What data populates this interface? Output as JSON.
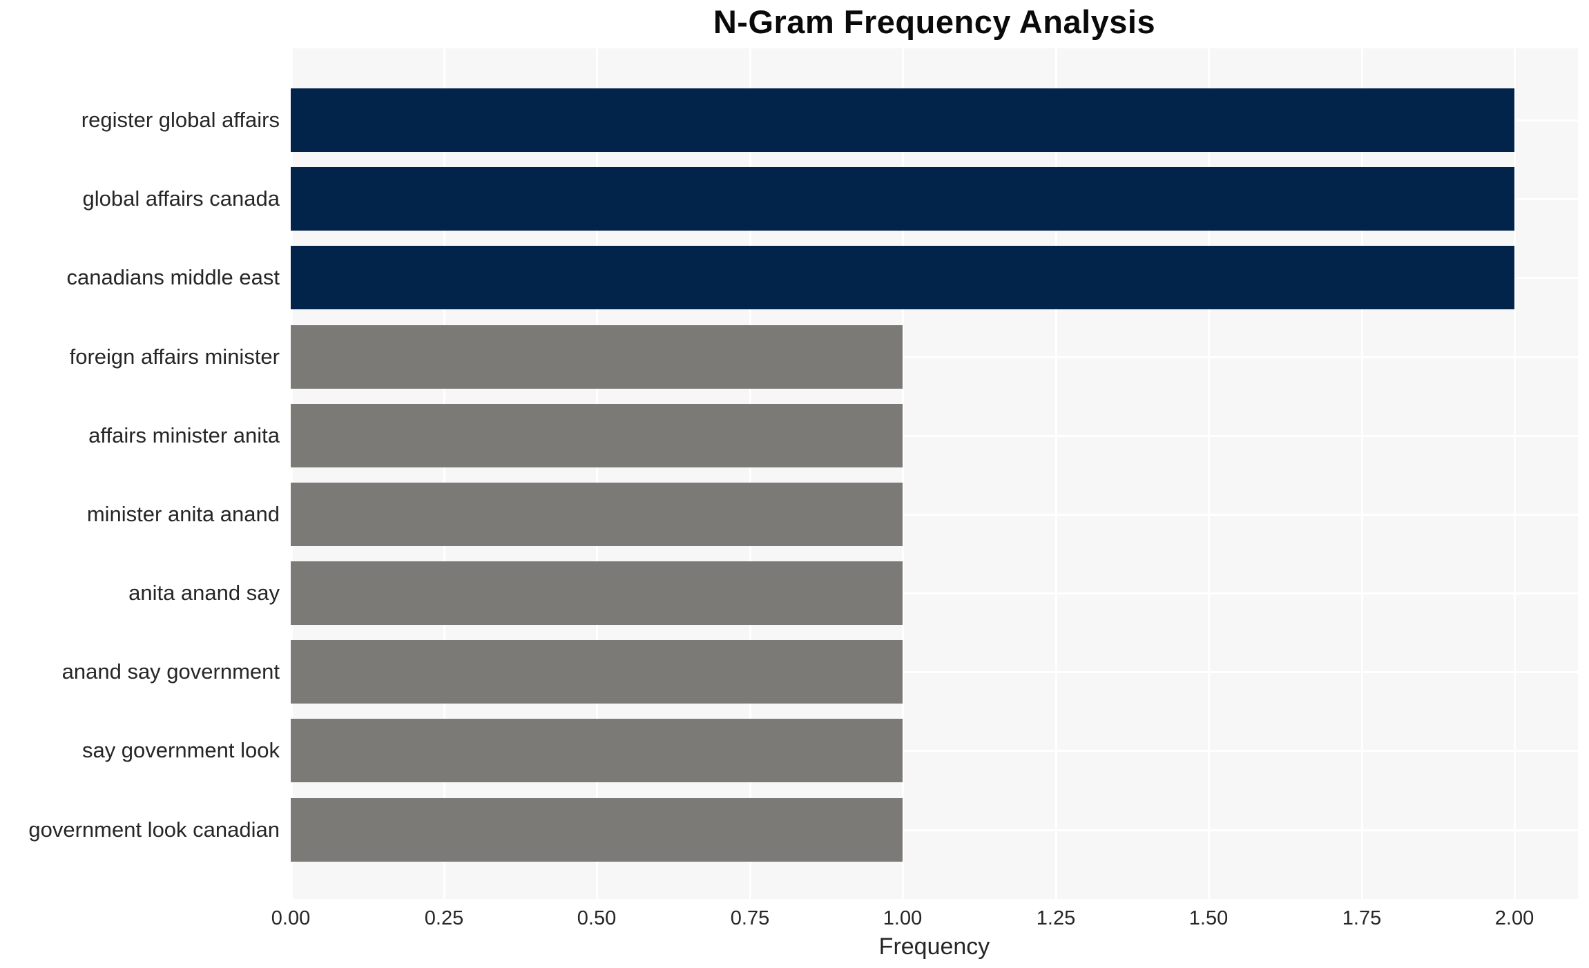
{
  "chart_data": {
    "type": "bar",
    "orientation": "horizontal",
    "title": "N-Gram Frequency Analysis",
    "xlabel": "Frequency",
    "ylabel": "",
    "categories": [
      "register global affairs",
      "global affairs canada",
      "canadians middle east",
      "foreign affairs minister",
      "affairs minister anita",
      "minister anita anand",
      "anita anand say",
      "anand say government",
      "say government look",
      "government look canadian"
    ],
    "values": [
      2,
      2,
      2,
      1,
      1,
      1,
      1,
      1,
      1,
      1
    ],
    "bar_colors": [
      "#02244A",
      "#02244A",
      "#02244A",
      "#7B7A76",
      "#7B7A76",
      "#7B7A76",
      "#7B7A76",
      "#7B7A76",
      "#7B7A76",
      "#7B7A76"
    ],
    "xlim": [
      0,
      2.104
    ],
    "xticks": [
      0.0,
      0.25,
      0.5,
      0.75,
      1.0,
      1.25,
      1.5,
      1.75,
      2.0
    ],
    "xtick_labels": [
      "0.00",
      "0.25",
      "0.50",
      "0.75",
      "1.00",
      "1.25",
      "1.50",
      "1.75",
      "2.00"
    ],
    "grid": true,
    "legend": "none",
    "colors": {
      "high_frequency_bar": "#02244A",
      "low_frequency_bar": "#7B7A76",
      "plot_background": "#F7F7F7",
      "gridline": "#FFFFFF",
      "text": "#262626"
    }
  }
}
